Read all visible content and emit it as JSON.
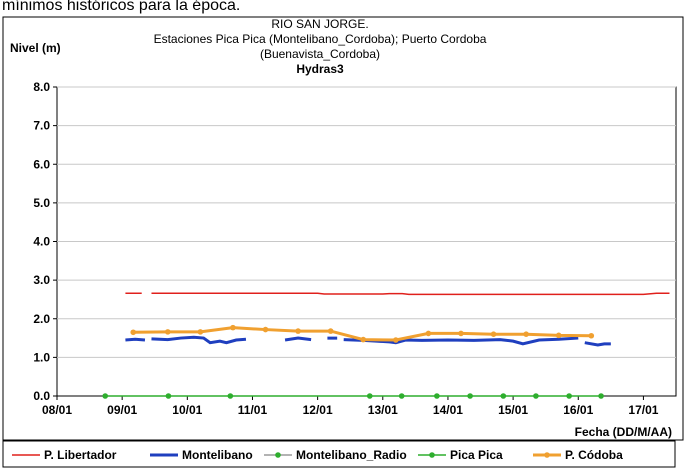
{
  "header_note": "mínimos históricos para la época.",
  "chart_data": {
    "type": "line",
    "title": [
      "RIO SAN JORGE.",
      "Estaciones Pica Pica (Montelibano_Cordoba); Puerto Cordoba",
      "(Buenavista_Cordoba)"
    ],
    "subtitle": "Hydras3",
    "y_label": "Nivel (m)",
    "x_label": "Fecha (DD/M/AA)",
    "xlim": [
      8,
      17.5
    ],
    "xticks": [
      {
        "value": 8,
        "label": "08/01"
      },
      {
        "value": 9,
        "label": "09/01"
      },
      {
        "value": 10,
        "label": "10/01"
      },
      {
        "value": 11,
        "label": "11/01"
      },
      {
        "value": 12,
        "label": "12/01"
      },
      {
        "value": 13,
        "label": "13/01"
      },
      {
        "value": 14,
        "label": "14/01"
      },
      {
        "value": 15,
        "label": "15/01"
      },
      {
        "value": 16,
        "label": "16/01"
      },
      {
        "value": 17,
        "label": "17/01"
      }
    ],
    "ylim": [
      0,
      8
    ],
    "yticks": [
      {
        "value": 0,
        "label": "0.0"
      },
      {
        "value": 1,
        "label": "1.0"
      },
      {
        "value": 2,
        "label": "2.0"
      },
      {
        "value": 3,
        "label": "3.0"
      },
      {
        "value": 4,
        "label": "4.0"
      },
      {
        "value": 5,
        "label": "5.0"
      },
      {
        "value": 6,
        "label": "6.0"
      },
      {
        "value": 7,
        "label": "7.0"
      },
      {
        "value": 8,
        "label": "8.0"
      }
    ],
    "grid": true,
    "legend": "bottom",
    "series": [
      {
        "name": "P. Libertador",
        "color": "#e0201c",
        "width": 1.5,
        "marker": false,
        "x": [
          9.05,
          9.3,
          9.4,
          9.45,
          10,
          11,
          12,
          12.1,
          13,
          13.1,
          13.3,
          13.4,
          14,
          15,
          16,
          17,
          17.2,
          17.4
        ],
        "values": [
          2.66,
          2.66,
          null,
          2.66,
          2.66,
          2.66,
          2.66,
          2.64,
          2.64,
          2.65,
          2.65,
          2.63,
          2.63,
          2.63,
          2.63,
          2.63,
          2.66,
          2.66
        ]
      },
      {
        "name": "Montelibano",
        "color": "#1f3fbf",
        "width": 3,
        "marker": false,
        "x": [
          9.05,
          9.2,
          9.35,
          9.4,
          9.45,
          9.7,
          9.9,
          10.1,
          10.25,
          10.35,
          10.5,
          10.6,
          10.75,
          10.9,
          11.0,
          11.5,
          11.7,
          11.9,
          12.0,
          12.15,
          12.3,
          12.35,
          12.4,
          12.7,
          12.9,
          13.1,
          13.2,
          13.35,
          13.6,
          14.0,
          14.4,
          14.8,
          15.0,
          15.15,
          15.4,
          15.7,
          16.0,
          16.05,
          16.1,
          16.3,
          16.4,
          16.5
        ],
        "values": [
          1.45,
          1.47,
          1.45,
          null,
          1.48,
          1.46,
          1.5,
          1.52,
          1.5,
          1.38,
          1.42,
          1.38,
          1.45,
          1.47,
          null,
          1.45,
          1.5,
          1.46,
          null,
          1.5,
          1.5,
          null,
          1.46,
          1.44,
          1.42,
          1.4,
          1.38,
          1.45,
          1.44,
          1.45,
          1.44,
          1.46,
          1.42,
          1.35,
          1.45,
          1.47,
          1.5,
          null,
          1.38,
          1.32,
          1.35,
          1.35
        ]
      },
      {
        "name": "Montelibano_Radio",
        "color": "#9a9a9a",
        "width": 1.5,
        "marker": true,
        "marker_color": "#2eae2e",
        "x": [
          9,
          17
        ],
        "values": [
          null,
          null
        ]
      },
      {
        "name": "Pica Pica",
        "color": "#2eae2e",
        "width": 1.5,
        "marker": true,
        "marker_color": "#2eae2e",
        "x": [
          8.74,
          9.71,
          10.66,
          12.8,
          13.29,
          13.83,
          14.34,
          14.85,
          15.35,
          15.86,
          16.35
        ],
        "values": [
          0,
          0,
          0,
          0,
          0,
          0,
          0,
          0,
          0,
          0,
          0
        ]
      },
      {
        "name": "P. Códoba",
        "color": "#f0a030",
        "width": 3,
        "marker": true,
        "marker_color": "#f0a030",
        "x": [
          9.17,
          9.7,
          10.2,
          10.7,
          11.2,
          11.7,
          12.2,
          12.7,
          13.2,
          13.7,
          14.2,
          14.7,
          15.2,
          15.7,
          16.2
        ],
        "values": [
          1.65,
          1.66,
          1.66,
          1.77,
          1.72,
          1.68,
          1.68,
          1.46,
          1.45,
          1.62,
          1.62,
          1.6,
          1.6,
          1.57,
          1.56
        ]
      }
    ]
  }
}
